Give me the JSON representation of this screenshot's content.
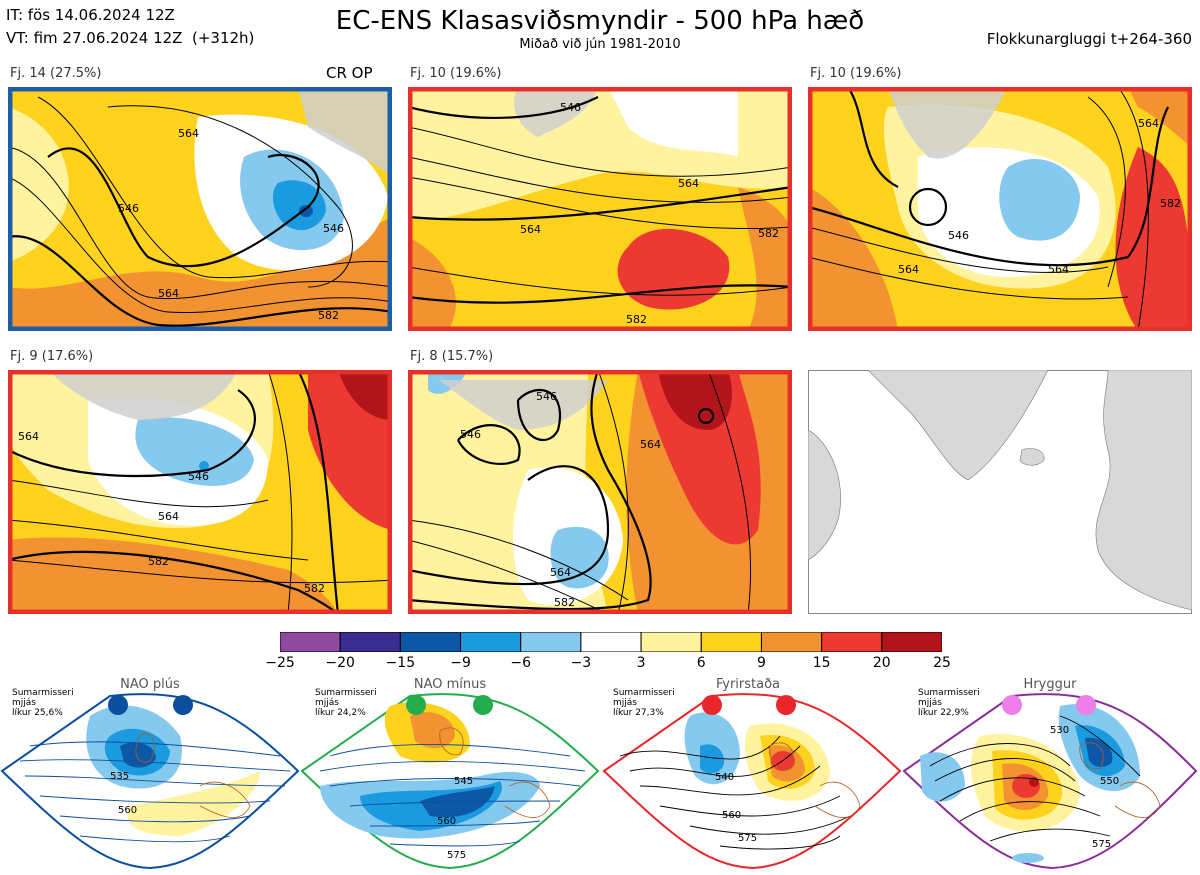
{
  "header": {
    "it_line": "IT: fös 14.06.2024 12Z",
    "vt_line": "VT: fim 27.06.2024 12Z  (+312h)",
    "title": "EC-ENS Klasasviðsmyndir - 500 hPa hæð",
    "subtitle": "Miðað við jún 1981-2010",
    "window": "Flokkunargluggi t+264-360"
  },
  "clusters": [
    {
      "label": "Fj. 14 (27.5%)",
      "tag": "CR OP",
      "border": "#1c5ea8",
      "contours": [
        "546",
        "564",
        "582",
        "564",
        "546"
      ]
    },
    {
      "label": "Fj. 10 (19.6%)",
      "tag": "",
      "border": "#e8302a",
      "contours": [
        "546",
        "564",
        "564",
        "582",
        "582"
      ]
    },
    {
      "label": "Fj. 10 (19.6%)",
      "tag": "",
      "border": "#e8302a",
      "contours": [
        "564",
        "546",
        "564",
        "564",
        "582"
      ]
    },
    {
      "label": "Fj. 9 (17.6%)",
      "tag": "",
      "border": "#e8302a",
      "contours": [
        "564",
        "546",
        "564",
        "582",
        "582"
      ]
    },
    {
      "label": "Fj. 8 (15.7%)",
      "tag": "",
      "border": "#e8302a",
      "contours": [
        "546",
        "546",
        "564",
        "564",
        "582"
      ]
    }
  ],
  "colorbar": {
    "ticks": [
      "−25",
      "−20",
      "−15",
      "−9",
      "−6",
      "−3",
      "3",
      "6",
      "9",
      "15",
      "20",
      "25"
    ],
    "colors": [
      "#8e4aa0",
      "#3b2d8f",
      "#0d58a6",
      "#1a9be0",
      "#86c9ee",
      "#ffffff",
      "#fff3a0",
      "#ffd21e",
      "#f39230",
      "#ec3a32",
      "#b2141c"
    ]
  },
  "regimes": [
    {
      "name": "NAO plús",
      "note": "Sumarmisseri\nmjjás\nlíkur 25,6%",
      "dot_color": "#0c4e9e",
      "border": "#0c4e9e",
      "contours": [
        "535",
        "560"
      ]
    },
    {
      "name": "NAO mínus",
      "note": "Sumarmisseri\nmjjás\nlíkur 24,2%",
      "dot_color": "#23ad4b",
      "border": "#23ad4b",
      "contours": [
        "545",
        "560",
        "575"
      ]
    },
    {
      "name": "Fyrirstaða",
      "note": "Sumarmisseri\nmjjás\nlíkur 27,3%",
      "dot_color": "#e8262b",
      "border": "#e8262b",
      "contours": [
        "540",
        "560",
        "575"
      ]
    },
    {
      "name": "Hryggur",
      "note": "Sumarmisseri\nmjjás\nlíkur 22,9%",
      "dot_color": "#ee7ee8",
      "border": "#8b2c9a",
      "contours": [
        "530",
        "550",
        "575"
      ]
    }
  ]
}
